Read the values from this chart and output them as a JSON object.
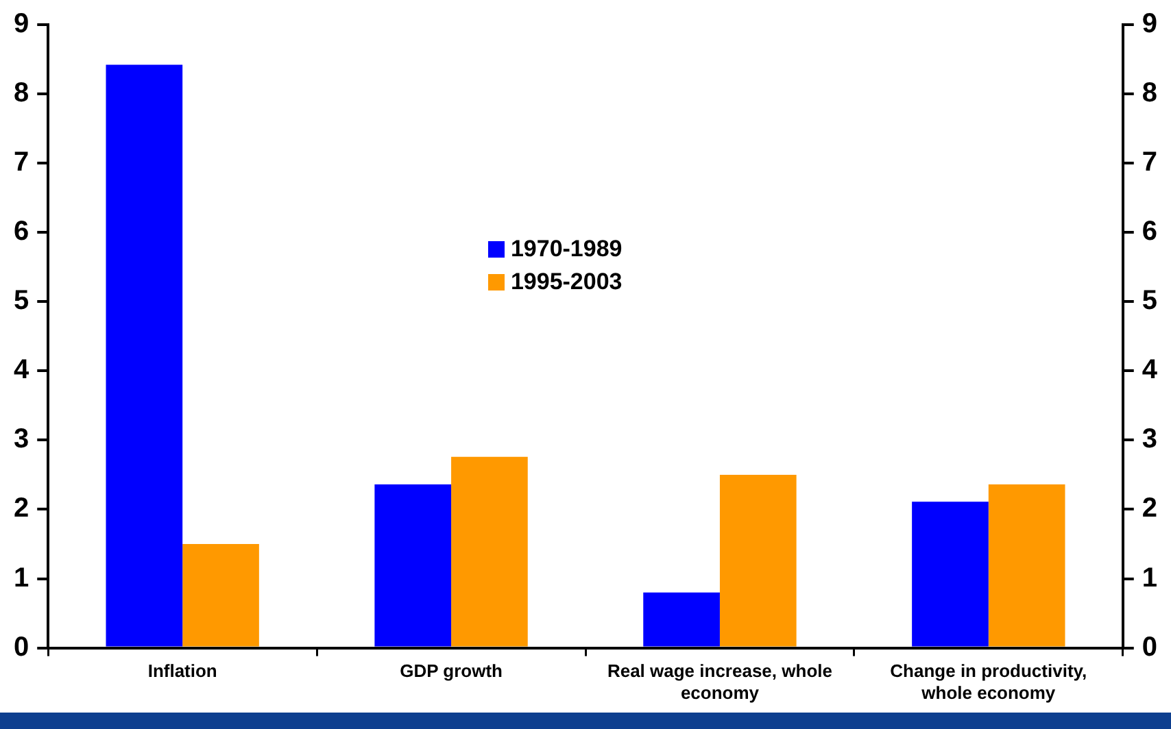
{
  "chart_data": {
    "type": "bar",
    "categories": [
      "Inflation",
      "GDP growth",
      "Real wage increase, whole economy",
      "Change in productivity, whole economy"
    ],
    "series": [
      {
        "name": "1970-1989",
        "color": "#0000ff",
        "values": [
          8.42,
          2.36,
          0.8,
          2.11
        ]
      },
      {
        "name": "1995-2003",
        "color": "#ff9900",
        "values": [
          1.5,
          2.76,
          2.5,
          2.36
        ]
      }
    ],
    "ylim": [
      0,
      9
    ],
    "yticks": [
      0,
      1,
      2,
      3,
      4,
      5,
      6,
      7,
      8,
      9
    ],
    "y2lim": [
      0,
      9
    ],
    "y2ticks": [
      0,
      1,
      2,
      3,
      4,
      5,
      6,
      7,
      8,
      9
    ],
    "grid": false,
    "legend": "center"
  }
}
